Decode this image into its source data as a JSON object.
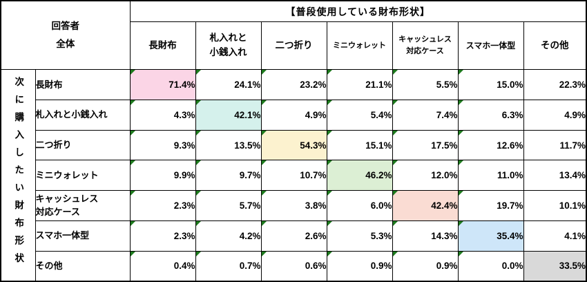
{
  "chart_data": {
    "type": "table",
    "title": "【普段使用している財布形状】",
    "corner_label": "回答者全体",
    "row_axis_title": "次に購入したい財布形状",
    "columns": [
      "長財布",
      "札入れと小銭入れ",
      "二つ折り",
      "ミニウォレット",
      "キャッシュレス対応ケース",
      "スマホ一体型",
      "その他"
    ],
    "rows": [
      {
        "label": "長財布",
        "values": [
          71.4,
          24.1,
          23.2,
          21.1,
          5.5,
          15.0,
          22.3
        ]
      },
      {
        "label": "札入れと小銭入れ",
        "values": [
          4.3,
          42.1,
          4.9,
          5.4,
          7.4,
          6.3,
          4.9
        ]
      },
      {
        "label": "二つ折り",
        "values": [
          9.3,
          13.5,
          54.3,
          15.1,
          17.5,
          12.6,
          11.7
        ]
      },
      {
        "label": "ミニウォレット",
        "values": [
          9.9,
          9.7,
          10.7,
          46.2,
          12.0,
          11.0,
          13.4
        ]
      },
      {
        "label": "キャッシュレス対応ケース",
        "values": [
          2.3,
          5.7,
          3.8,
          6.0,
          42.4,
          19.7,
          10.1
        ]
      },
      {
        "label": "スマホ一体型",
        "values": [
          2.3,
          4.2,
          2.6,
          5.3,
          14.3,
          35.4,
          4.1
        ]
      },
      {
        "label": "その他",
        "values": [
          0.4,
          0.7,
          0.6,
          0.9,
          0.9,
          0.0,
          33.5
        ]
      }
    ],
    "unit": "%",
    "highlighted_diagonal": true
  },
  "header": {
    "group_title": "【普段使用している財布形状】",
    "corner_line1": "回答者",
    "corner_line2": "全体"
  },
  "left_axis": {
    "title": "次に購入したい財布形状"
  },
  "columns": [
    {
      "lines": [
        "長財布"
      ]
    },
    {
      "lines": [
        "札入れと",
        "小銭入れ"
      ]
    },
    {
      "lines": [
        "二つ折り"
      ]
    },
    {
      "lines": [
        "ミニウォレット"
      ]
    },
    {
      "lines": [
        "キャッシュレス",
        "対応ケース"
      ]
    },
    {
      "lines": [
        "スマホ一体型"
      ]
    },
    {
      "lines": [
        "その他"
      ]
    }
  ],
  "rows": [
    {
      "label_lines": [
        "長財布"
      ],
      "cells": [
        "71.4%",
        "24.1%",
        "23.2%",
        "21.1%",
        "5.5%",
        "15.0%",
        "22.3%"
      ]
    },
    {
      "label_lines": [
        "札入れと小銭入れ"
      ],
      "cells": [
        "4.3%",
        "42.1%",
        "4.9%",
        "5.4%",
        "7.4%",
        "6.3%",
        "4.9%"
      ]
    },
    {
      "label_lines": [
        "二つ折り"
      ],
      "cells": [
        "9.3%",
        "13.5%",
        "54.3%",
        "15.1%",
        "17.5%",
        "12.6%",
        "11.7%"
      ]
    },
    {
      "label_lines": [
        "ミニウォレット"
      ],
      "cells": [
        "9.9%",
        "9.7%",
        "10.7%",
        "46.2%",
        "12.0%",
        "11.0%",
        "13.4%"
      ]
    },
    {
      "label_lines": [
        "キャッシュレス",
        "対応ケース"
      ],
      "cells": [
        "2.3%",
        "5.7%",
        "3.8%",
        "6.0%",
        "42.4%",
        "19.7%",
        "10.1%"
      ]
    },
    {
      "label_lines": [
        "スマホ一体型"
      ],
      "cells": [
        "2.3%",
        "4.2%",
        "2.6%",
        "5.3%",
        "14.3%",
        "35.4%",
        "4.1%"
      ]
    },
    {
      "label_lines": [
        "その他"
      ],
      "cells": [
        "0.4%",
        "0.7%",
        "0.6%",
        "0.9%",
        "0.9%",
        "0.0%",
        "33.5%"
      ]
    }
  ],
  "colors": {
    "highlights": [
      "#fbd5e6",
      "#d5f1ec",
      "#fcf2cf",
      "#dcefd4",
      "#fadcd3",
      "#cee6f9",
      "#d9d9d9"
    ],
    "marker_green": "#1e7b1e",
    "border": "#000000"
  },
  "marker_columns": [
    true,
    true,
    true,
    true,
    true,
    true,
    false
  ]
}
